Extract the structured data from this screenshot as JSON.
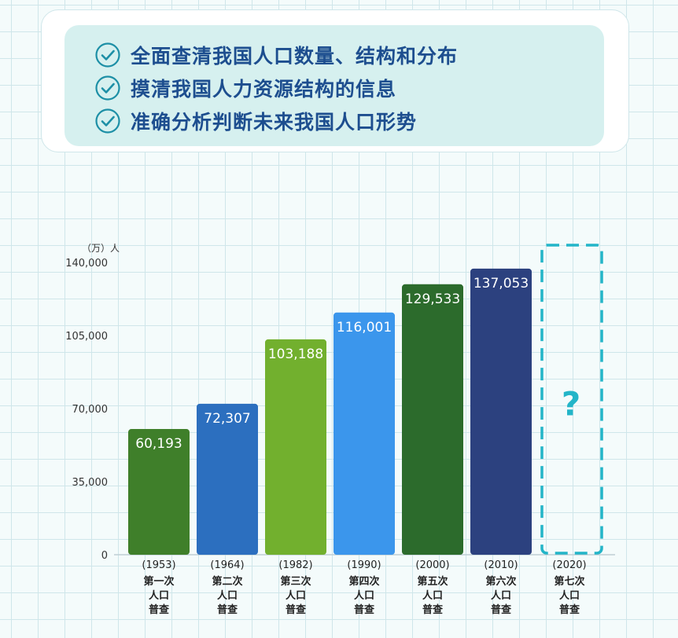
{
  "goals": [
    "全面查清我国人口数量、结构和分布",
    "摸清我国人力资源结构的信息",
    "准确分析判断未来我国人口形势"
  ],
  "chart_data": {
    "type": "bar",
    "unit_label": "（万）人",
    "ylim": [
      0,
      140000
    ],
    "yticks": [
      "0",
      "35,000",
      "70,000",
      "105,000",
      "140,000"
    ],
    "ytick_values": [
      0,
      35000,
      70000,
      105000,
      140000
    ],
    "categories": [
      {
        "year": "(1953)",
        "name": "第一次",
        "l2": "人口",
        "l3": "普查",
        "value": 60193,
        "label": "60,193",
        "color": "#3f7f2a"
      },
      {
        "year": "(1964)",
        "name": "第二次",
        "l2": "人口",
        "l3": "普查",
        "value": 72307,
        "label": "72,307",
        "color": "#2c6fbf"
      },
      {
        "year": "(1982)",
        "name": "第三次",
        "l2": "人口",
        "l3": "普查",
        "value": 103188,
        "label": "103,188",
        "color": "#72b02e"
      },
      {
        "year": "(1990)",
        "name": "第四次",
        "l2": "人口",
        "l3": "普查",
        "value": 116001,
        "label": "116,001",
        "color": "#3b96ec"
      },
      {
        "year": "(2000)",
        "name": "第五次",
        "l2": "人口",
        "l3": "普查",
        "value": 129533,
        "label": "129,533",
        "color": "#2c6b2c"
      },
      {
        "year": "(2010)",
        "name": "第六次",
        "l2": "人口",
        "l3": "普查",
        "value": 137053,
        "label": "137,053",
        "color": "#2c417f"
      },
      {
        "year": "(2020)",
        "name": "第七次",
        "l2": "人口",
        "l3": "普查",
        "value": null,
        "label": "?",
        "color": "#23b5c8"
      }
    ],
    "accent_color": "#23b5c8",
    "label_color": "#1d4e8f"
  }
}
